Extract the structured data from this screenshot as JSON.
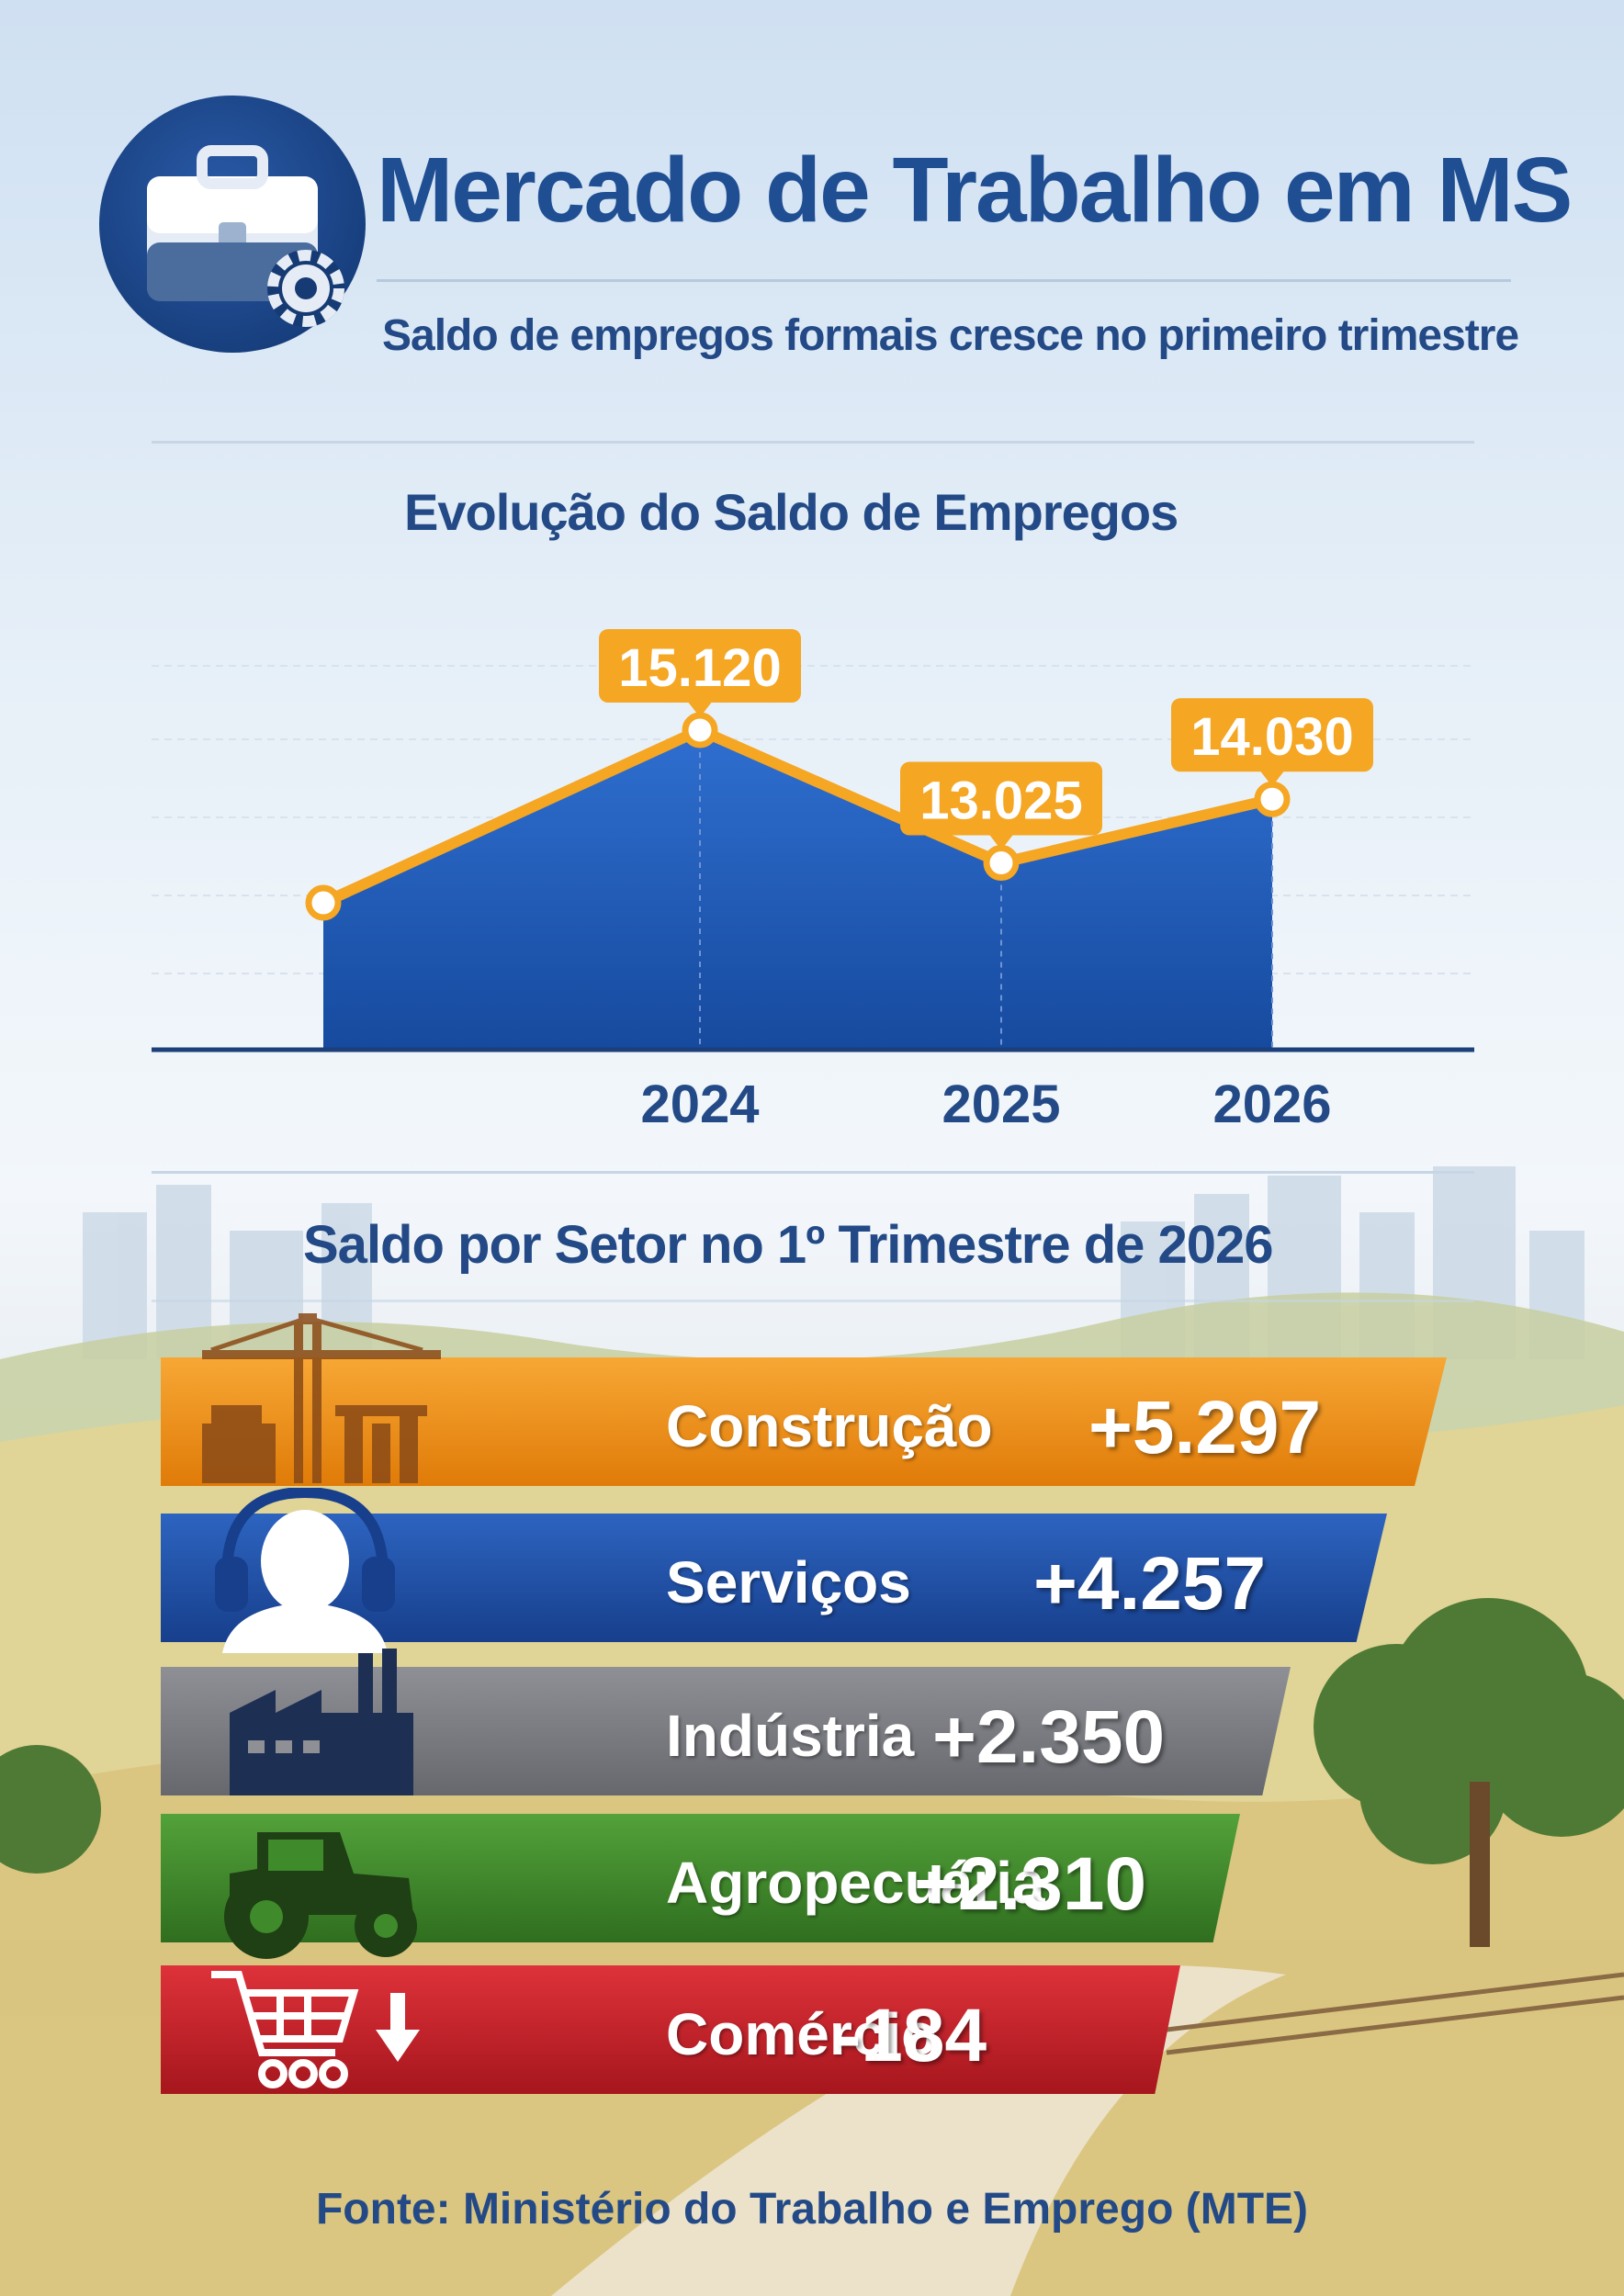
{
  "header": {
    "title": "Mercado de Trabalho em MS",
    "subtitle": "Saldo de empregos formais cresce no primeiro trimestre"
  },
  "chart_data": [
    {
      "type": "area",
      "title": "Evolução do Saldo de Empregos",
      "categories": [
        "",
        "2024",
        "2025",
        "2026"
      ],
      "values": [
        null,
        15120,
        13025,
        14030
      ],
      "data_labels": [
        "",
        "15.120",
        "13.025",
        "14.030"
      ],
      "grid": true,
      "colors": {
        "line": "#f5a623",
        "area": "#1f5cb4"
      }
    },
    {
      "type": "bar",
      "title": "Saldo por Setor no 1º Trimestre de 2026",
      "orientation": "horizontal",
      "categories": [
        "Construção",
        "Serviços",
        "Indústria",
        "Agropecuária",
        "Comércio"
      ],
      "values": [
        5297,
        4257,
        2350,
        2310,
        -184
      ],
      "data_labels": [
        "+5.297",
        "+4.257",
        "+2.350",
        "+2.310",
        "-184"
      ],
      "colors": [
        "#f08c0e",
        "#1f52aa",
        "#7d7f85",
        "#3f8a2b",
        "#c8222a"
      ],
      "icons": [
        "construction-crane-icon",
        "headset-worker-icon",
        "factory-icon",
        "tractor-icon",
        "shopping-cart-down-icon"
      ]
    }
  ],
  "source": "Fonte: Ministério do Trabalho e Emprego (MTE)"
}
